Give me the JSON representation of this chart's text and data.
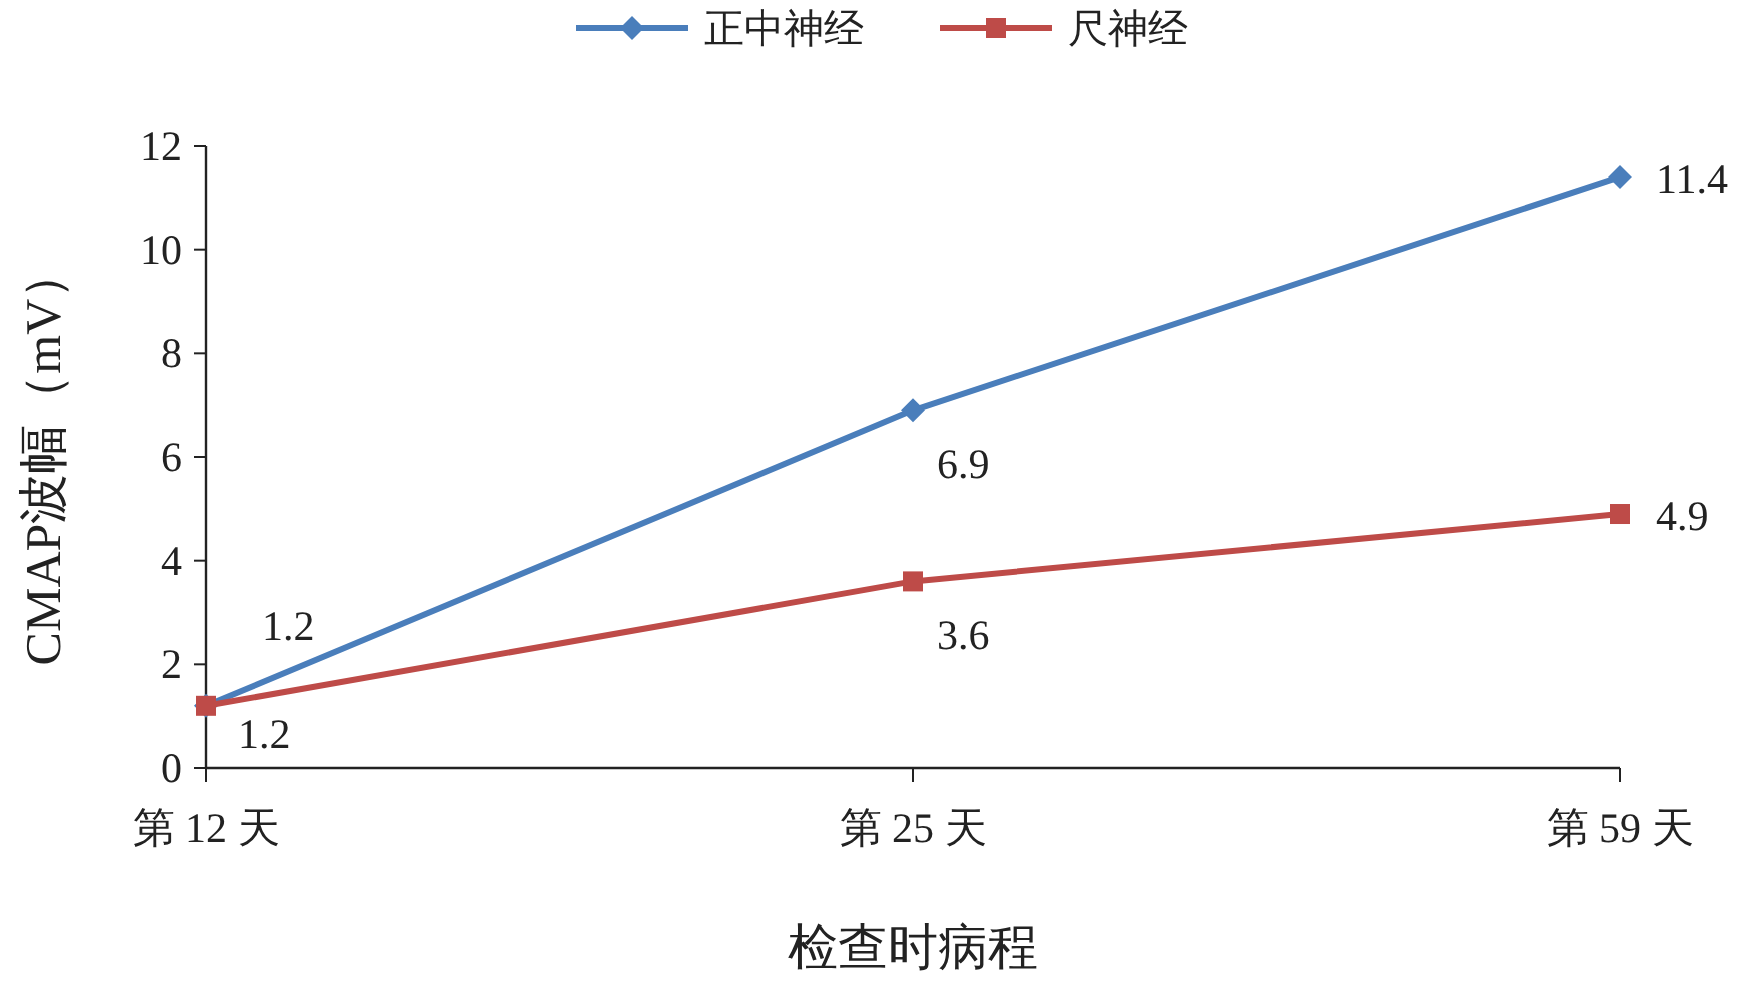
{
  "chart_data": {
    "type": "line",
    "xlabel": "检查时病程",
    "ylabel": "CMAP波幅（mV）",
    "categories": [
      "第 12 天",
      "第 25 天",
      "第 59 天"
    ],
    "series": [
      {
        "name": "正中神经",
        "color": "#4a7ebb",
        "marker": "diamond",
        "values": [
          1.2,
          6.9,
          11.4
        ]
      },
      {
        "name": "尺神经",
        "color": "#be4b48",
        "marker": "square",
        "values": [
          1.2,
          3.6,
          4.9
        ]
      }
    ],
    "ylim": [
      0,
      12
    ],
    "yticks": [
      0,
      2,
      4,
      6,
      8,
      10,
      12
    ],
    "data_labels": true,
    "legend": "top",
    "grid": false
  }
}
